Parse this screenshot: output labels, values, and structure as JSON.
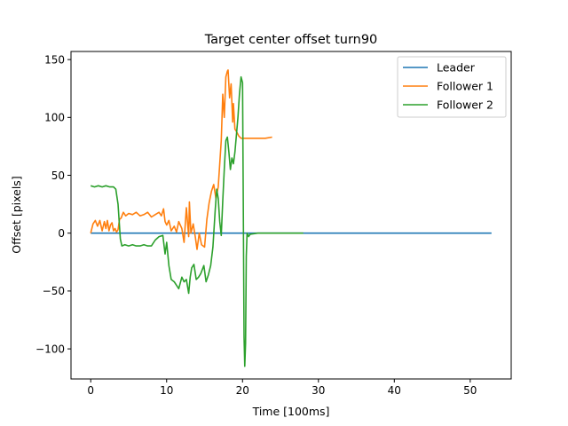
{
  "chart_data": {
    "type": "line",
    "title": "Target center offset turn90",
    "xlabel": "Time [100ms]",
    "ylabel": "Offset [pixels]",
    "xlim": [
      -2.6,
      55.4
    ],
    "ylim": [
      -126,
      157
    ],
    "xticks": [
      0,
      10,
      20,
      30,
      40,
      50
    ],
    "yticks": [
      -100,
      -50,
      0,
      50,
      100,
      150
    ],
    "ytick_labels": [
      "−100",
      "−50",
      "0",
      "50",
      "100",
      "150"
    ],
    "grid": false,
    "legend_position": "top-right",
    "series": [
      {
        "name": "Leader",
        "color": "#1f77b4",
        "x": [
          0,
          52.8
        ],
        "y": [
          0,
          0
        ]
      },
      {
        "name": "Follower 1",
        "color": "#ff7f0e",
        "x": [
          0,
          0.3,
          0.6,
          0.9,
          1.2,
          1.5,
          1.8,
          2.0,
          2.2,
          2.4,
          2.6,
          2.8,
          3.0,
          3.2,
          3.4,
          3.6,
          3.8,
          4.0,
          4.3,
          4.6,
          5.0,
          5.5,
          6.0,
          6.5,
          7.0,
          7.5,
          8.0,
          8.5,
          9.0,
          9.3,
          9.6,
          9.8,
          10.0,
          10.3,
          10.6,
          11.0,
          11.3,
          11.6,
          12.0,
          12.3,
          12.6,
          12.9,
          13.0,
          13.2,
          13.5,
          13.8,
          14.0,
          14.3,
          14.6,
          15.0,
          15.3,
          15.6,
          15.9,
          16.2,
          16.5,
          16.8,
          17.0,
          17.2,
          17.4,
          17.6,
          17.8,
          18.0,
          18.1,
          18.2,
          18.3,
          18.5,
          18.7,
          18.8,
          19.0,
          19.2,
          19.5,
          19.8,
          20.0,
          20.5,
          21.0,
          22.0,
          23.0,
          23.9
        ],
        "y": [
          0,
          8,
          11,
          6,
          11,
          2,
          10,
          4,
          11,
          2,
          7,
          9,
          2,
          4,
          1,
          3,
          12,
          13,
          18,
          15,
          17,
          16,
          18,
          15,
          16,
          18,
          14,
          16,
          18,
          15,
          21,
          10,
          7,
          11,
          2,
          6,
          1,
          10,
          4,
          -8,
          22,
          -3,
          27,
          0,
          8,
          -4,
          -14,
          0,
          -10,
          -12,
          12,
          26,
          36,
          42,
          30,
          40,
          60,
          80,
          120,
          100,
          135,
          140,
          141,
          128,
          117,
          129,
          96,
          112,
          90,
          88,
          84,
          82,
          82,
          82,
          82,
          82,
          82,
          83
        ]
      },
      {
        "name": "Follower 2",
        "color": "#2ca02c",
        "x": [
          0,
          0.5,
          1.0,
          1.5,
          2.0,
          2.5,
          3.0,
          3.3,
          3.6,
          3.9,
          4.1,
          4.5,
          5.0,
          5.5,
          6.0,
          6.5,
          7.0,
          7.5,
          8.0,
          8.5,
          9.0,
          9.5,
          9.8,
          10.0,
          10.3,
          10.6,
          11.0,
          11.3,
          11.6,
          12.0,
          12.3,
          12.6,
          12.9,
          13.1,
          13.3,
          13.6,
          13.9,
          14.2,
          14.5,
          14.9,
          15.2,
          15.5,
          15.8,
          16.1,
          16.4,
          16.6,
          16.8,
          17.0,
          17.2,
          17.4,
          17.6,
          17.8,
          18.0,
          18.2,
          18.4,
          18.6,
          18.8,
          19.0,
          19.2,
          19.4,
          19.6,
          19.8,
          20.0,
          20.1,
          20.2,
          20.3,
          20.4,
          20.5,
          20.6,
          20.8,
          21.0,
          22.0,
          24.0,
          26.0,
          28.0
        ],
        "y": [
          41,
          40,
          41,
          40,
          41,
          40,
          40,
          38,
          25,
          -5,
          -11,
          -10,
          -11,
          -10,
          -11,
          -11,
          -10,
          -11,
          -11,
          -6,
          -3,
          -2,
          -18,
          -8,
          -28,
          -40,
          -42,
          -45,
          -48,
          -38,
          -42,
          -40,
          -52,
          -38,
          -30,
          -27,
          -40,
          -38,
          -35,
          -28,
          -42,
          -36,
          -28,
          -12,
          20,
          38,
          30,
          10,
          -2,
          28,
          55,
          80,
          83,
          70,
          55,
          65,
          60,
          70,
          85,
          100,
          120,
          135,
          130,
          30,
          -90,
          -115,
          -95,
          -20,
          0,
          -3,
          -1,
          0,
          0,
          0,
          0
        ]
      }
    ]
  }
}
